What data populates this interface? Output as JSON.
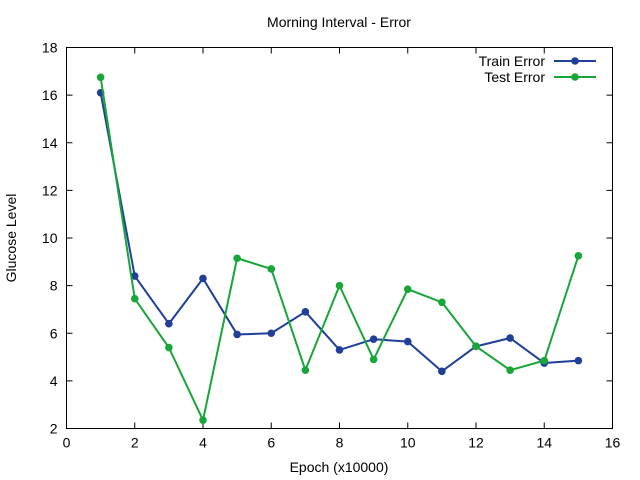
{
  "chart_data": {
    "type": "line",
    "title": "Morning Interval - Error",
    "xlabel": "Epoch (x10000)",
    "ylabel": "Glucose Level",
    "xlim": [
      0,
      16
    ],
    "ylim": [
      2,
      18
    ],
    "xticks": [
      0,
      2,
      4,
      6,
      8,
      10,
      12,
      14,
      16
    ],
    "yticks": [
      2,
      4,
      6,
      8,
      10,
      12,
      14,
      16,
      18
    ],
    "grid": false,
    "legend_position": "top-right",
    "x": [
      1,
      2,
      3,
      4,
      5,
      6,
      7,
      8,
      9,
      10,
      11,
      12,
      13,
      14,
      15
    ],
    "series": [
      {
        "name": "Train Error",
        "color": "#1f3f99",
        "values": [
          16.1,
          8.4,
          6.4,
          8.3,
          5.95,
          6.0,
          6.9,
          5.3,
          5.75,
          5.65,
          4.4,
          5.45,
          5.8,
          4.75,
          4.85
        ]
      },
      {
        "name": "Test Error",
        "color": "#17a637",
        "values": [
          16.75,
          7.45,
          5.4,
          2.35,
          9.15,
          8.7,
          4.45,
          8.0,
          4.9,
          7.85,
          7.3,
          5.45,
          4.45,
          4.85,
          9.25
        ]
      }
    ]
  }
}
